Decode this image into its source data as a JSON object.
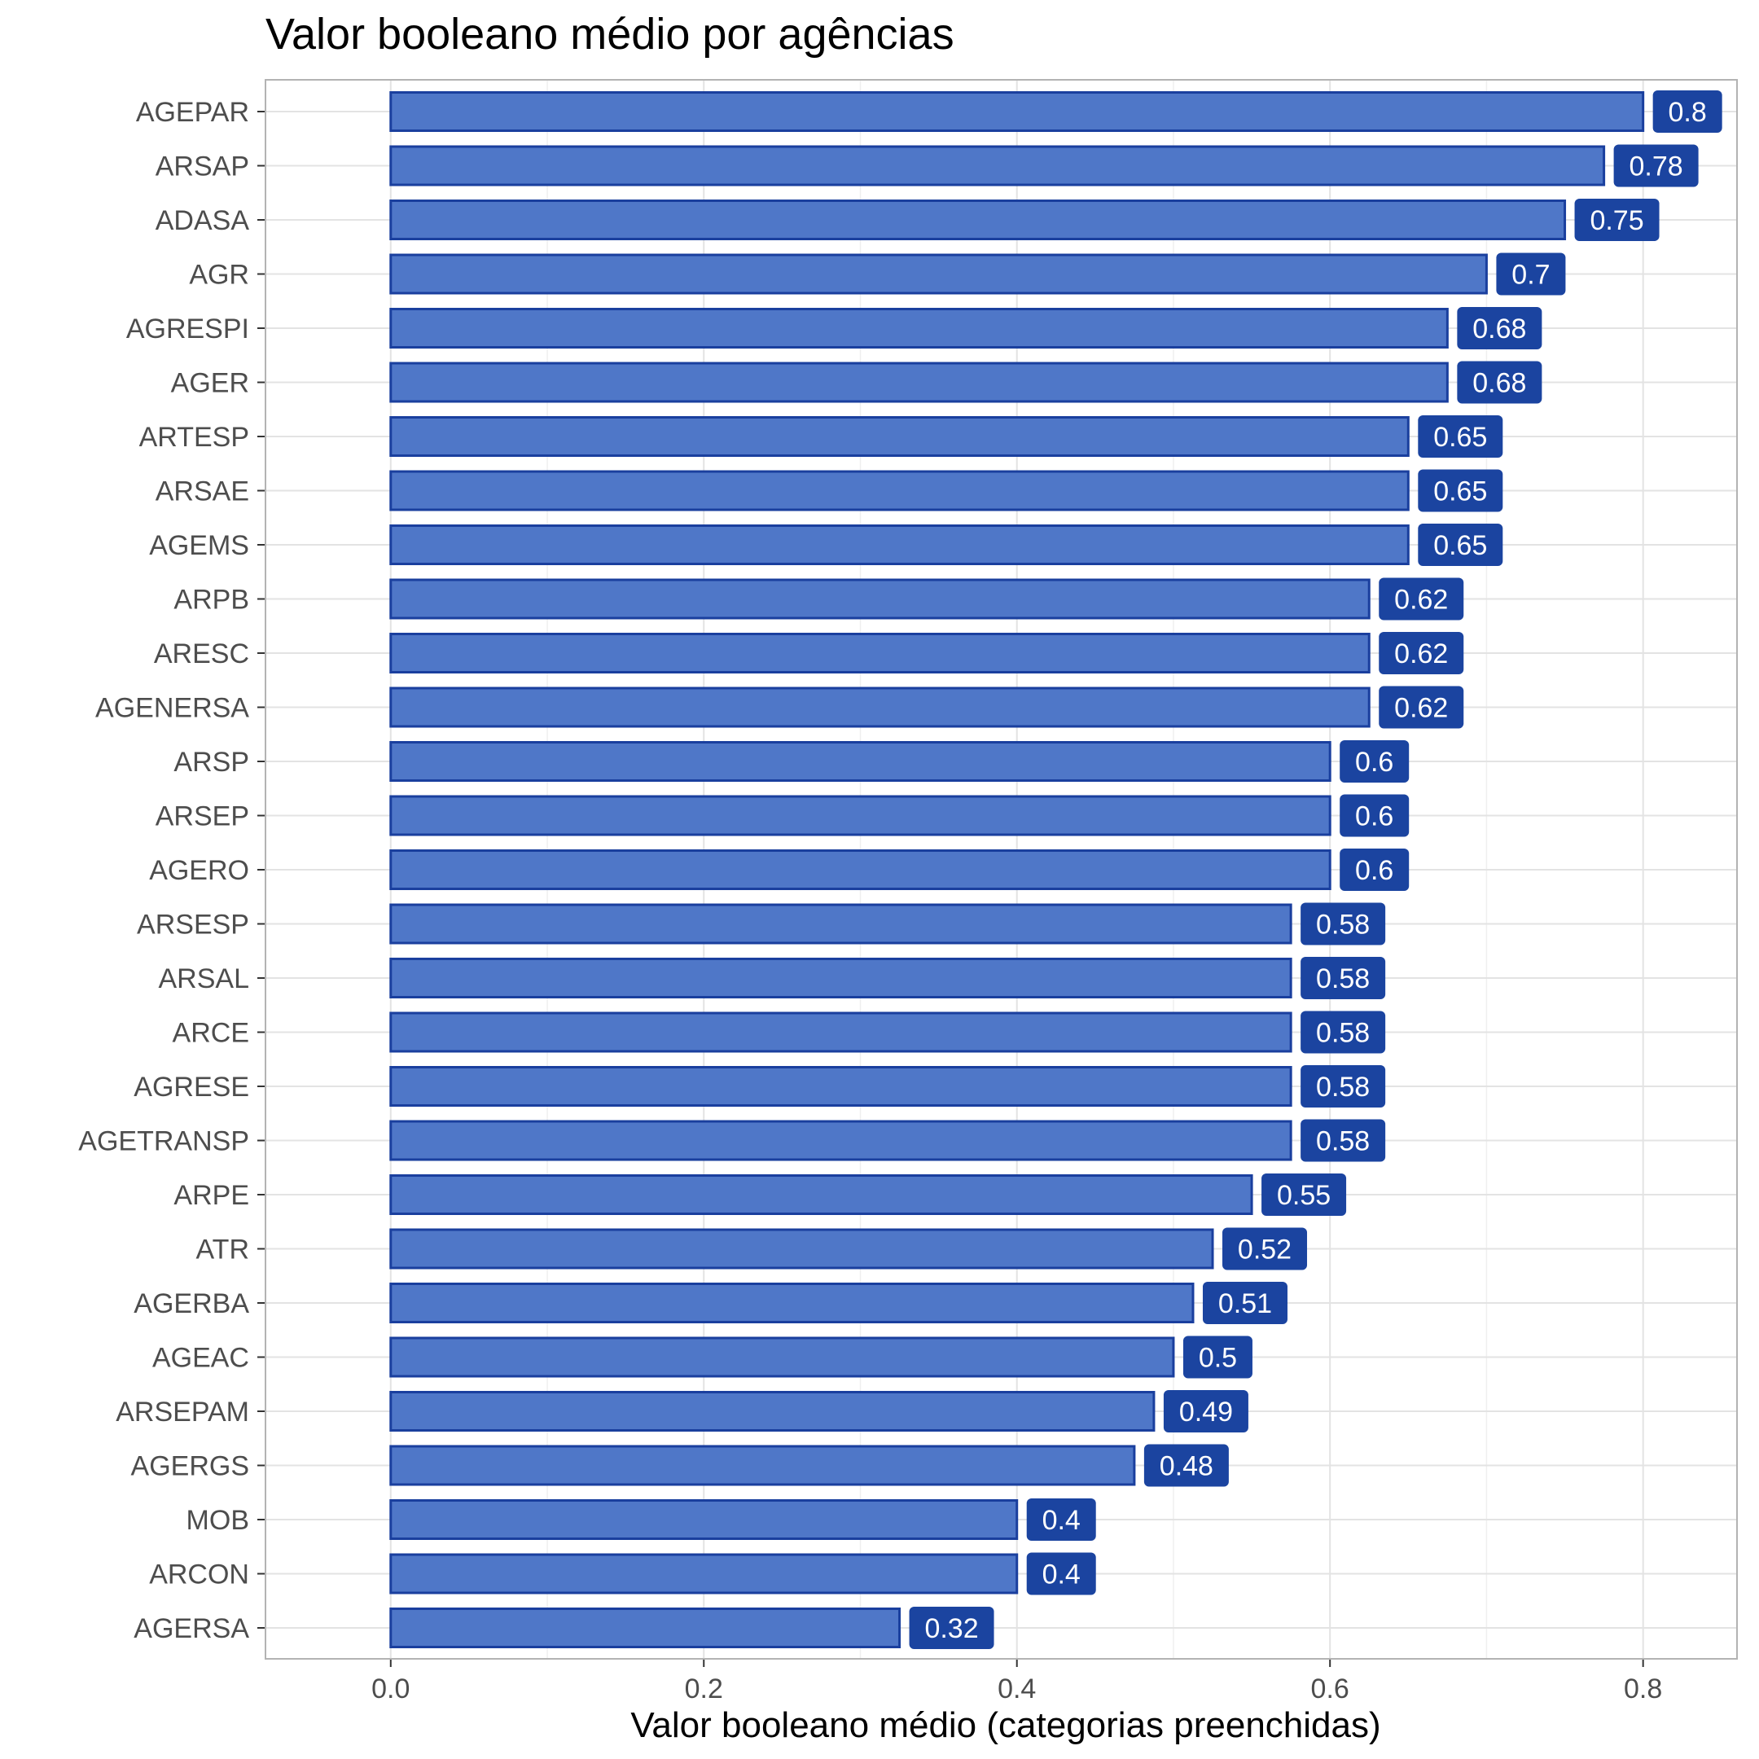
{
  "chart_data": {
    "type": "bar",
    "orientation": "horizontal",
    "title": "Valor booleano médio por agências",
    "xlabel": "Valor booleano médio (categorias preenchidas)",
    "ylabel": "",
    "xlim": [
      -0.08,
      0.86
    ],
    "xticks": [
      "0.0",
      "0.2",
      "0.4",
      "0.6",
      "0.8"
    ],
    "grid": true,
    "categories": [
      "AGEPAR",
      "ARSAP",
      "ADASA",
      "AGR",
      "AGRESPI",
      "AGER",
      "ARTESP",
      "ARSAE",
      "AGEMS",
      "ARPB",
      "ARESC",
      "AGENERSA",
      "ARSP",
      "ARSEP",
      "AGERO",
      "ARSESP",
      "ARSAL",
      "ARCE",
      "AGRESE",
      "AGETRANSP",
      "ARPE",
      "ATR",
      "AGERBA",
      "AGEAC",
      "ARSEPAM",
      "AGERGS",
      "MOB",
      "ARCON",
      "AGERSA"
    ],
    "values": [
      0.8,
      0.775,
      0.75,
      0.7,
      0.675,
      0.675,
      0.65,
      0.65,
      0.65,
      0.625,
      0.625,
      0.625,
      0.6,
      0.6,
      0.6,
      0.575,
      0.575,
      0.575,
      0.575,
      0.575,
      0.55,
      0.525,
      0.5125,
      0.5,
      0.4875,
      0.475,
      0.4,
      0.4,
      0.325
    ],
    "value_labels": [
      "0.8",
      "0.78",
      "0.75",
      "0.7",
      "0.68",
      "0.68",
      "0.65",
      "0.65",
      "0.65",
      "0.62",
      "0.62",
      "0.62",
      "0.6",
      "0.6",
      "0.6",
      "0.58",
      "0.58",
      "0.58",
      "0.58",
      "0.58",
      "0.55",
      "0.52",
      "0.51",
      "0.5",
      "0.49",
      "0.48",
      "0.4",
      "0.4",
      "0.32"
    ],
    "colors": {
      "bar_fill": "#4f77c8",
      "bar_stroke": "#1a3f9e",
      "label_bg": "#1b44a0",
      "label_text": "#ffffff",
      "grid": "#e3e3e3",
      "panel_border": "#b3b3b3"
    }
  }
}
